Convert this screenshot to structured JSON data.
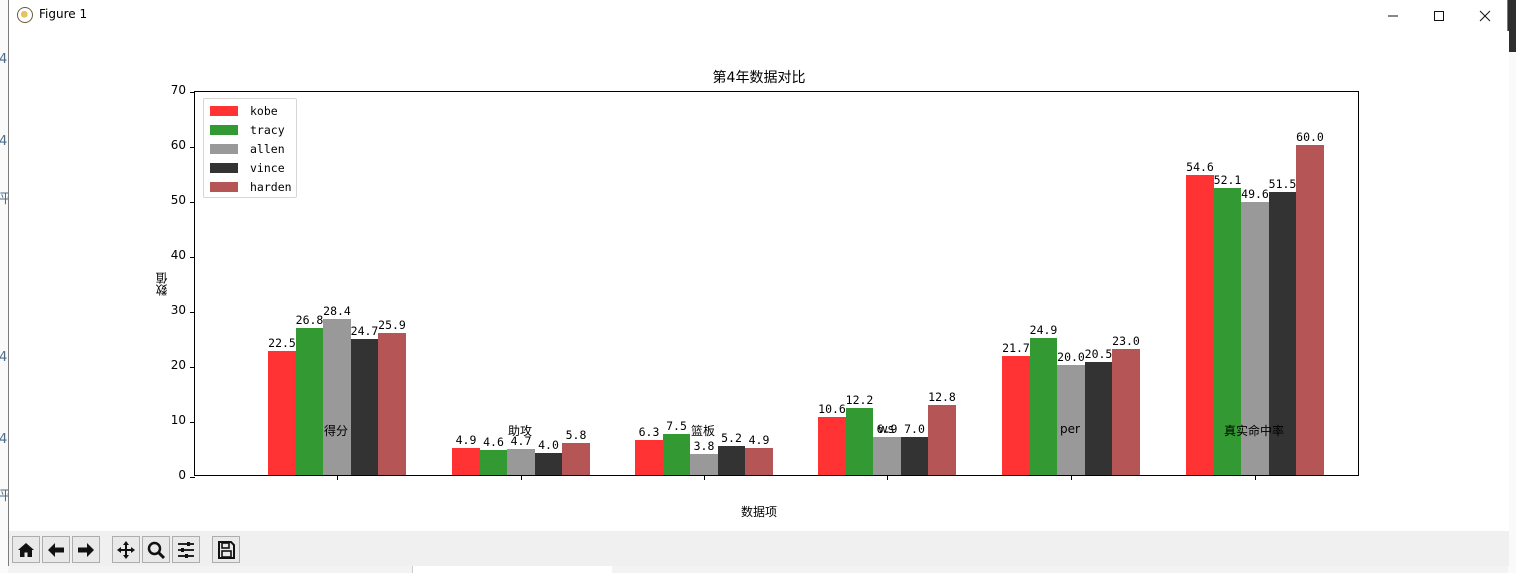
{
  "window": {
    "title": "Figure 1",
    "controls": [
      "minimize",
      "maximize",
      "close"
    ]
  },
  "toolbar": {
    "buttons": [
      {
        "name": "home",
        "icon": "home-icon"
      },
      {
        "name": "back",
        "icon": "arrow-left-icon"
      },
      {
        "name": "forward",
        "icon": "arrow-right-icon"
      },
      {
        "name": "pan",
        "icon": "move-icon"
      },
      {
        "name": "zoom",
        "icon": "magnifier-icon"
      },
      {
        "name": "configure-subplots",
        "icon": "sliders-icon"
      },
      {
        "name": "save",
        "icon": "floppy-disk-icon"
      }
    ]
  },
  "chart_data": {
    "type": "bar",
    "title": "第4年数据对比",
    "xlabel": "数据项",
    "ylabel": "数值",
    "ylim": [
      0,
      70
    ],
    "yticks": [
      0,
      10,
      20,
      30,
      40,
      50,
      60,
      70
    ],
    "grid": false,
    "legend_position": "upper left",
    "categories": [
      "得分",
      "助攻",
      "篮板",
      "ws",
      "per",
      "真实命中率"
    ],
    "series": [
      {
        "name": "kobe",
        "color": "#ff3333",
        "values": [
          22.5,
          4.9,
          6.3,
          10.6,
          21.7,
          54.6
        ]
      },
      {
        "name": "tracy",
        "color": "#339933",
        "values": [
          26.8,
          4.6,
          7.5,
          12.2,
          24.9,
          52.1
        ]
      },
      {
        "name": "allen",
        "color": "#999999",
        "values": [
          28.4,
          4.7,
          3.8,
          6.9,
          20.0,
          49.6
        ]
      },
      {
        "name": "vince",
        "color": "#333333",
        "values": [
          24.7,
          4.0,
          5.2,
          7.0,
          20.5,
          51.5
        ]
      },
      {
        "name": "harden",
        "color": "#b55555",
        "values": [
          25.9,
          5.8,
          4.9,
          12.8,
          23.0,
          60.0
        ]
      }
    ]
  }
}
